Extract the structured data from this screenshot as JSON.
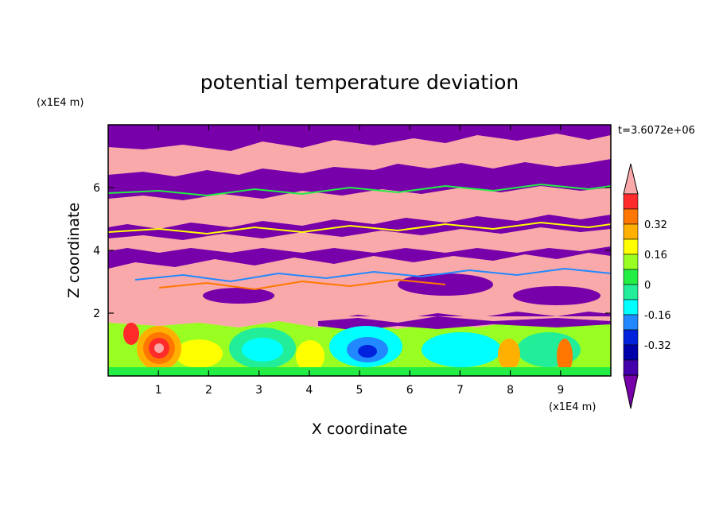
{
  "chart_data": {
    "type": "heatmap",
    "title": "potential temperature deviation",
    "time_label": "t=3.6072e+06",
    "xlabel": "X coordinate",
    "ylabel": "Z coordinate",
    "x_unit": "(x1E4 m)",
    "y_unit": "(x1E4 m)",
    "xlim": [
      0,
      10
    ],
    "ylim": [
      0,
      8
    ],
    "x_ticks": [
      "1",
      "2",
      "3",
      "4",
      "5",
      "6",
      "7",
      "8",
      "9"
    ],
    "y_ticks": [
      "2",
      "4",
      "6"
    ],
    "colorbar": {
      "levels": [
        "0.32",
        "0.16",
        "0",
        "-0.16",
        "-0.32"
      ],
      "colors": [
        "#f9a9a9",
        "#ff2a2a",
        "#ff7700",
        "#ffb000",
        "#ffff00",
        "#99ff22",
        "#22ee44",
        "#22ee99",
        "#00ffff",
        "#2288ff",
        "#0022dd",
        "#0000aa",
        "#4400aa",
        "#7700aa"
      ],
      "bins": [
        0.48,
        0.4,
        0.32,
        0.24,
        0.16,
        0.08,
        0.0,
        -0.08,
        -0.16,
        -0.24,
        -0.32,
        -0.4,
        -0.48
      ]
    },
    "field_regions": [
      {
        "z_range": [
          6.2,
          8.0
        ],
        "pattern": "alternating bands of large positive (>0.48) and large negative (<-0.48) deviation"
      },
      {
        "z_range": [
          2.0,
          6.2
        ],
        "pattern": "layered high/low deviation with thin gradient fringes"
      },
      {
        "z_range": [
          0.0,
          2.0
        ],
        "pattern": "boundary layer with convective eddies, mostly -0.16 to 0.16, warm core near x=1, cold core near x=5"
      }
    ]
  }
}
